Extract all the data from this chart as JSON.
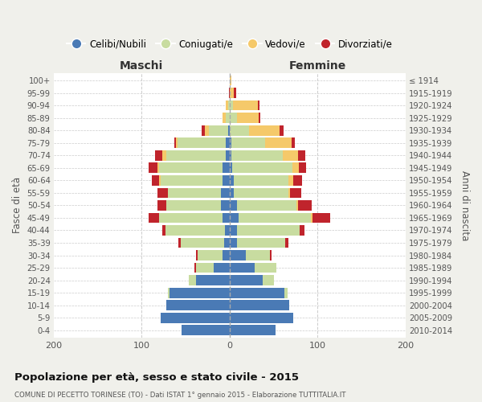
{
  "age_groups": [
    "0-4",
    "5-9",
    "10-14",
    "15-19",
    "20-24",
    "25-29",
    "30-34",
    "35-39",
    "40-44",
    "45-49",
    "50-54",
    "55-59",
    "60-64",
    "65-69",
    "70-74",
    "75-79",
    "80-84",
    "85-89",
    "90-94",
    "95-99",
    "100+"
  ],
  "birth_years": [
    "2010-2014",
    "2005-2009",
    "2000-2004",
    "1995-1999",
    "1990-1994",
    "1985-1989",
    "1980-1984",
    "1975-1979",
    "1970-1974",
    "1965-1969",
    "1960-1964",
    "1955-1959",
    "1950-1954",
    "1945-1949",
    "1940-1944",
    "1935-1939",
    "1930-1934",
    "1925-1929",
    "1920-1924",
    "1915-1919",
    "≤ 1914"
  ],
  "male": {
    "celibi": [
      55,
      78,
      72,
      68,
      38,
      18,
      8,
      6,
      5,
      8,
      10,
      10,
      8,
      8,
      4,
      4,
      2,
      0,
      0,
      0,
      0
    ],
    "coniugati": [
      0,
      0,
      0,
      2,
      8,
      20,
      28,
      50,
      68,
      72,
      62,
      60,
      70,
      72,
      68,
      55,
      22,
      4,
      2,
      0,
      0
    ],
    "vedovi": [
      0,
      0,
      0,
      0,
      0,
      0,
      0,
      0,
      0,
      0,
      0,
      0,
      2,
      2,
      5,
      2,
      4,
      4,
      2,
      0,
      0
    ],
    "divorziati": [
      0,
      0,
      0,
      0,
      0,
      2,
      2,
      2,
      4,
      12,
      10,
      12,
      8,
      10,
      8,
      2,
      4,
      0,
      0,
      1,
      0
    ]
  },
  "female": {
    "nubili": [
      52,
      72,
      68,
      62,
      38,
      28,
      18,
      8,
      8,
      10,
      8,
      5,
      5,
      3,
      2,
      2,
      0,
      0,
      0,
      0,
      0
    ],
    "coniugate": [
      0,
      0,
      0,
      4,
      12,
      25,
      28,
      55,
      72,
      82,
      68,
      62,
      62,
      68,
      58,
      38,
      22,
      8,
      4,
      0,
      0
    ],
    "vedove": [
      0,
      0,
      0,
      0,
      0,
      0,
      0,
      0,
      0,
      2,
      2,
      2,
      5,
      8,
      18,
      30,
      35,
      25,
      28,
      5,
      2
    ],
    "divorziate": [
      0,
      0,
      0,
      0,
      0,
      0,
      2,
      4,
      5,
      20,
      15,
      12,
      10,
      8,
      8,
      4,
      4,
      2,
      2,
      2,
      0
    ]
  },
  "colors": {
    "celibi": "#4a7ab5",
    "coniugati": "#c8dca0",
    "vedovi": "#f5c96a",
    "divorziati": "#c0242c"
  },
  "xlim": 200,
  "title": "Popolazione per età, sesso e stato civile - 2015",
  "subtitle": "COMUNE DI PECETTO TORINESE (TO) - Dati ISTAT 1° gennaio 2015 - Elaborazione TUTTITALIA.IT",
  "ylabel_left": "Fasce di età",
  "ylabel_right": "Anni di nascita",
  "xlabel_maschi": "Maschi",
  "xlabel_femmine": "Femmine",
  "legend_labels": [
    "Celibi/Nubili",
    "Coniugati/e",
    "Vedovi/e",
    "Divorziati/e"
  ],
  "background_color": "#f0f0eb",
  "plot_bg": "#ffffff"
}
